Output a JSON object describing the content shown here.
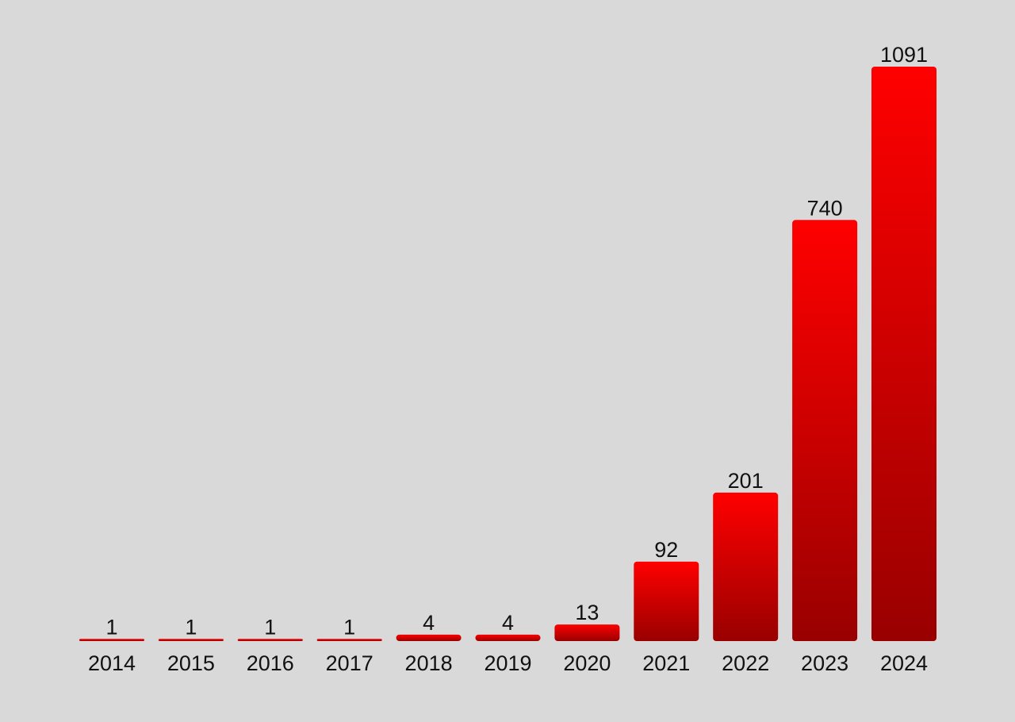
{
  "chart_data": {
    "type": "bar",
    "title": "",
    "xlabel": "",
    "ylabel": "",
    "categories": [
      "2014",
      "2015",
      "2016",
      "2017",
      "2018",
      "2019",
      "2020",
      "2021",
      "2022",
      "2023",
      "2024"
    ],
    "values": [
      1,
      1,
      1,
      1,
      4,
      4,
      13,
      92,
      201,
      740,
      1091
    ],
    "ylim": [
      0,
      1091
    ],
    "grid": false,
    "colors": {
      "bar_top": "#ff0000",
      "bar_bottom": "#990000",
      "background": "#d9d9d9",
      "text": "#111111"
    }
  }
}
